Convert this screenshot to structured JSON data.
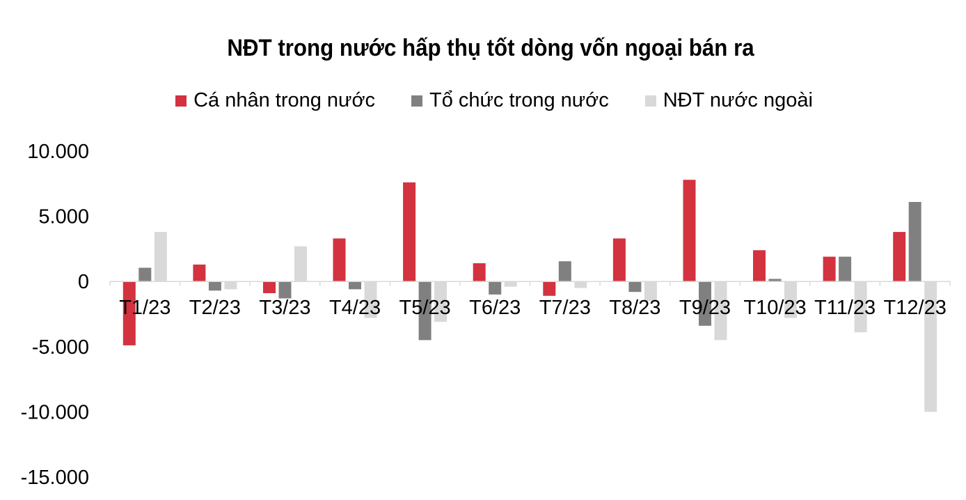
{
  "chart_data": {
    "type": "bar",
    "title": "NĐT trong nước hấp thụ tốt dòng vốn ngoại bán ra",
    "xlabel": "",
    "ylabel": "",
    "ylim": [
      -15000,
      10000
    ],
    "y_ticks": [
      10000,
      5000,
      0,
      -5000,
      -10000,
      -15000
    ],
    "y_tick_labels": [
      "10.000",
      "5.000",
      "0",
      "-5.000",
      "-10.000",
      "-15.000"
    ],
    "grid": false,
    "legend_position": "top",
    "categories": [
      "T1/23",
      "T2/23",
      "T3/23",
      "T4/23",
      "T5/23",
      "T6/23",
      "T7/23",
      "T8/23",
      "T9/23",
      "T10/23",
      "T11/23",
      "T12/23"
    ],
    "series": [
      {
        "name": "Cá nhân trong nước",
        "color": "#d3323f",
        "values": [
          -4900,
          1300,
          -900,
          3300,
          7600,
          1400,
          -1100,
          3300,
          7800,
          2400,
          1900,
          3800
        ]
      },
      {
        "name": "Tổ chức trong nước",
        "color": "#808080",
        "values": [
          1050,
          -700,
          -1300,
          -600,
          -4500,
          -1000,
          1550,
          -800,
          -3400,
          200,
          1900,
          6100
        ]
      },
      {
        "name": "NĐT nước ngoài",
        "color": "#d9d9d9",
        "values": [
          3800,
          -600,
          2700,
          -2800,
          -3100,
          -400,
          -500,
          -1500,
          -4500,
          -2800,
          -3900,
          -10000
        ]
      }
    ]
  }
}
